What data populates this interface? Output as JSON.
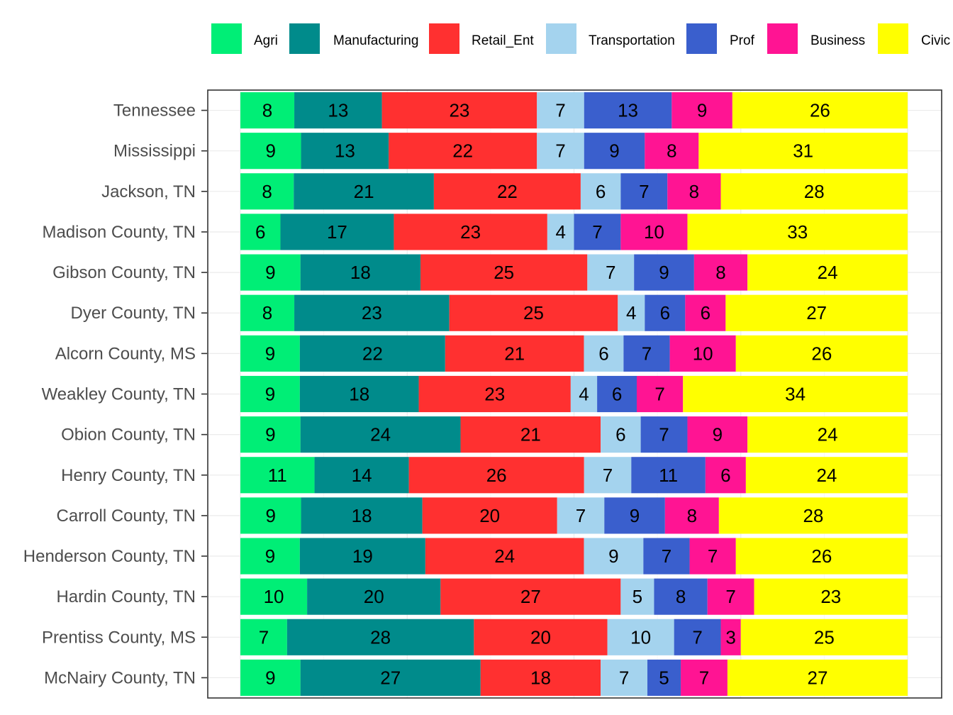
{
  "chart_data": {
    "type": "bar",
    "orientation": "horizontal",
    "stacked": true,
    "normalized_percent": true,
    "grid": true,
    "legend_position": "top",
    "xlim": [
      0,
      100
    ],
    "categories": [
      "Tennessee",
      "Mississippi",
      "Jackson, TN",
      "Madison County, TN",
      "Gibson County, TN",
      "Dyer County, TN",
      "Alcorn County, MS",
      "Weakley County, TN",
      "Obion County, TN",
      "Henry County, TN",
      "Carroll County, TN",
      "Henderson County, TN",
      "Hardin County, TN",
      "Prentiss County, MS",
      "McNairy County, TN"
    ],
    "series": [
      {
        "name": "Agri",
        "color": "#00ee76",
        "values": [
          8,
          9,
          8,
          6,
          9,
          8,
          9,
          9,
          9,
          11,
          9,
          9,
          10,
          7,
          9
        ]
      },
      {
        "name": "Manufacturing",
        "color": "#008b8b",
        "values": [
          13,
          13,
          21,
          17,
          18,
          23,
          22,
          18,
          24,
          14,
          18,
          19,
          20,
          28,
          27
        ]
      },
      {
        "name": "Retail_Ent",
        "color": "#ff3030",
        "values": [
          23,
          22,
          22,
          23,
          25,
          25,
          21,
          23,
          21,
          26,
          20,
          24,
          27,
          20,
          18
        ]
      },
      {
        "name": "Transportation",
        "color": "#a4d3ee",
        "values": [
          7,
          7,
          6,
          4,
          7,
          4,
          6,
          4,
          6,
          7,
          7,
          9,
          5,
          10,
          7
        ]
      },
      {
        "name": "Prof",
        "color": "#3a5fcd",
        "values": [
          13,
          9,
          7,
          7,
          9,
          6,
          7,
          6,
          7,
          11,
          9,
          7,
          8,
          7,
          5
        ]
      },
      {
        "name": "Business",
        "color": "#ff1493",
        "values": [
          9,
          8,
          8,
          10,
          8,
          6,
          10,
          7,
          9,
          6,
          8,
          7,
          7,
          3,
          7
        ]
      },
      {
        "name": "Civic",
        "color": "#ffff00",
        "values": [
          26,
          31,
          28,
          33,
          24,
          27,
          26,
          34,
          24,
          24,
          28,
          26,
          23,
          25,
          27
        ]
      }
    ]
  }
}
